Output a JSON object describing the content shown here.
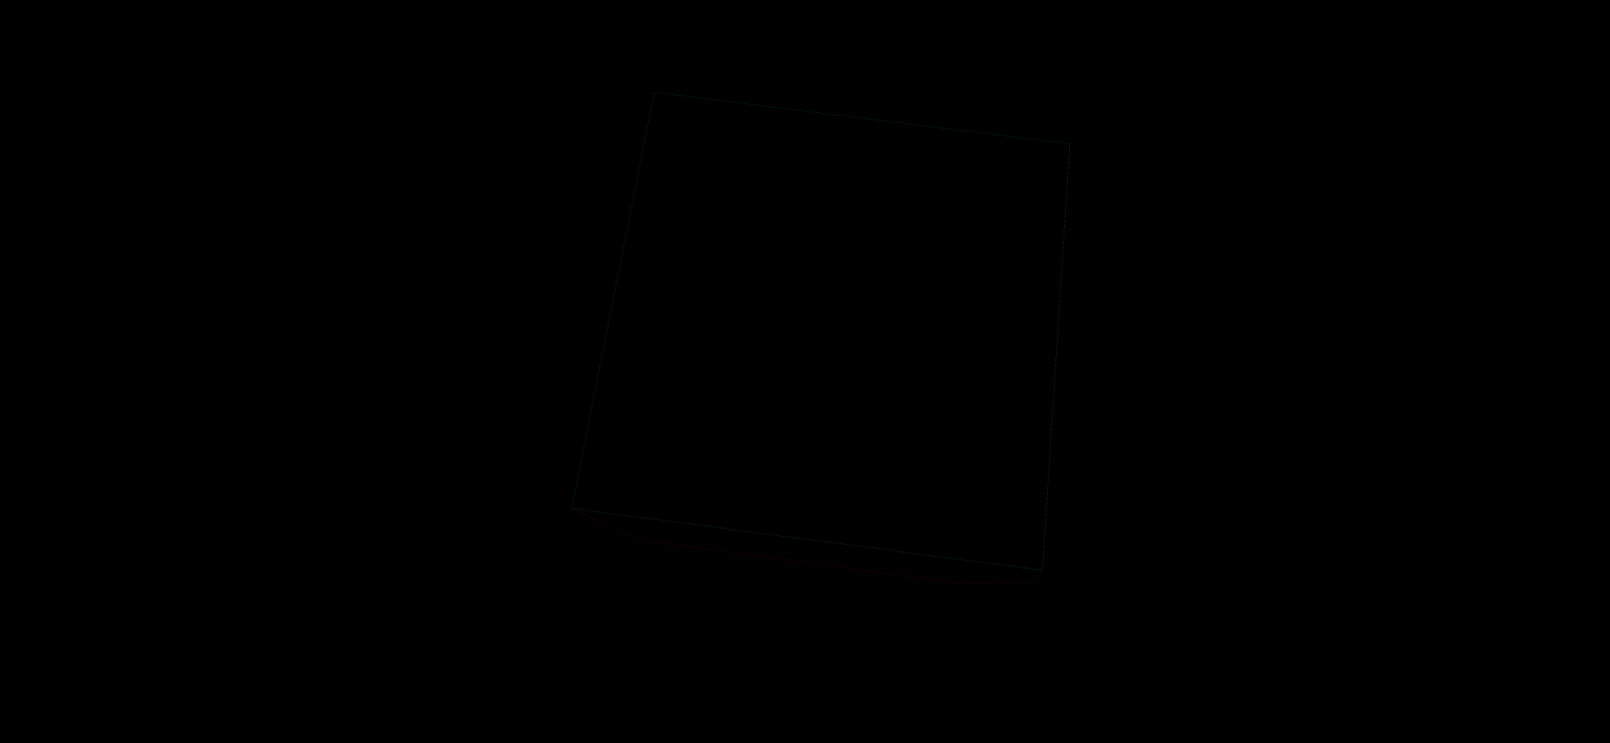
{
  "scene": {
    "background_color": "#000000",
    "object": "cube",
    "faces": [
      {
        "name": "front",
        "color": "#00FFFF",
        "texture": "marble"
      },
      {
        "name": "bottom",
        "color": "#FF0000",
        "texture": "marble"
      }
    ]
  }
}
